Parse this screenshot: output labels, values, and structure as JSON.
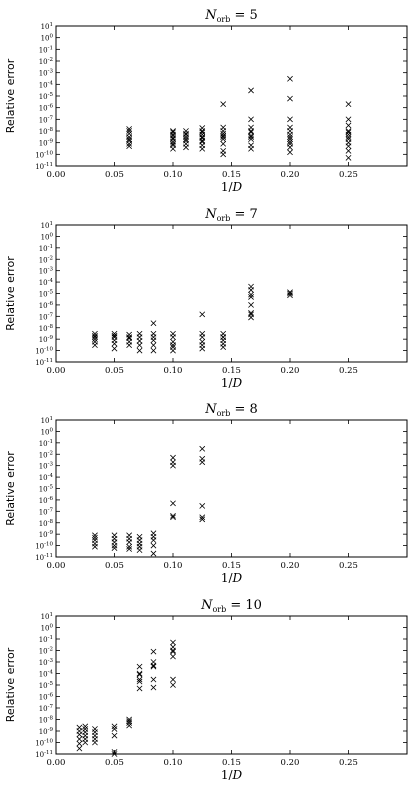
{
  "chart_data": [
    {
      "type": "scatter",
      "title": "N_orb = 5",
      "title_base": "N",
      "title_sub": "orb",
      "title_value": " = 5",
      "xlabel": "1/D",
      "ylabel": "Relative error",
      "xlim": [
        0,
        0.3
      ],
      "ylim": [
        1e-11,
        10
      ],
      "yscale": "log",
      "xticks": [
        0.0,
        0.05,
        0.1,
        0.15,
        0.2,
        0.25
      ],
      "xtick_labels": [
        "0.00",
        "0.05",
        "0.10",
        "0.15",
        "0.20",
        "0.25"
      ],
      "marker": "x",
      "series": [
        {
          "x": [
            0.0625,
            0.0625,
            0.0625,
            0.0625,
            0.0625,
            0.0625,
            0.0625,
            0.0625,
            0.1,
            0.1,
            0.1,
            0.1,
            0.1,
            0.1,
            0.1,
            0.1,
            0.1,
            0.1,
            0.1111,
            0.1111,
            0.1111,
            0.1111,
            0.1111,
            0.1111,
            0.1111,
            0.1111,
            0.125,
            0.125,
            0.125,
            0.125,
            0.125,
            0.125,
            0.125,
            0.125,
            0.125,
            0.125,
            0.1429,
            0.1429,
            0.1429,
            0.1429,
            0.1429,
            0.1429,
            0.1429,
            0.1429,
            0.1429,
            0.1429,
            0.1667,
            0.1667,
            0.1667,
            0.1667,
            0.1667,
            0.1667,
            0.1667,
            0.1667,
            0.1667,
            0.1667,
            0.2,
            0.2,
            0.2,
            0.2,
            0.2,
            0.2,
            0.2,
            0.2,
            0.2,
            0.2,
            0.2,
            0.2,
            0.25,
            0.25,
            0.25,
            0.25,
            0.25,
            0.25,
            0.25,
            0.25,
            0.25,
            0.25,
            0.25,
            0.25
          ],
          "y": [
            1.5e-08,
            6e-09,
            3e-09,
            1.5e-09,
            8e-10,
            5e-10,
            1e-08,
            2e-09,
            1e-08,
            5e-09,
            2.5e-09,
            1.2e-09,
            6e-10,
            3e-10,
            8e-09,
            4e-09,
            2e-09,
            8e-10,
            1e-08,
            6e-09,
            3e-09,
            1.5e-09,
            8e-10,
            4e-10,
            5e-09,
            2e-09,
            1.8e-08,
            1e-08,
            5e-09,
            2.5e-09,
            1.2e-09,
            6e-10,
            3e-10,
            8e-09,
            3e-09,
            1.5e-09,
            2e-06,
            2e-08,
            1e-08,
            4e-09,
            2e-09,
            8e-10,
            2e-10,
            1e-10,
            6e-09,
            3e-09,
            3e-05,
            1e-07,
            2e-08,
            8e-09,
            4e-09,
            2e-09,
            6e-10,
            3e-10,
            1e-08,
            3e-09,
            0.0003,
            6e-06,
            1e-07,
            2e-08,
            1e-08,
            5e-09,
            2e-09,
            8e-10,
            4e-10,
            1.5e-10,
            3e-09,
            1.2e-09,
            2e-06,
            1e-07,
            3e-08,
            1e-08,
            5e-09,
            2e-09,
            1e-09,
            5e-10,
            2e-10,
            5e-11,
            8e-09,
            3e-09
          ]
        }
      ]
    },
    {
      "type": "scatter",
      "title": "N_orb = 7",
      "title_base": "N",
      "title_sub": "orb",
      "title_value": " = 7",
      "xlabel": "1/D",
      "ylabel": "Relative error",
      "xlim": [
        0,
        0.3
      ],
      "ylim": [
        1e-11,
        10
      ],
      "yscale": "log",
      "xticks": [
        0.0,
        0.05,
        0.1,
        0.15,
        0.2,
        0.25
      ],
      "xtick_labels": [
        "0.00",
        "0.05",
        "0.10",
        "0.15",
        "0.20",
        "0.25"
      ],
      "marker": "x",
      "series": [
        {
          "x": [
            0.0333,
            0.0333,
            0.0333,
            0.0333,
            0.0333,
            0.0333,
            0.05,
            0.05,
            0.05,
            0.05,
            0.05,
            0.05,
            0.0625,
            0.0625,
            0.0625,
            0.0625,
            0.0625,
            0.0714,
            0.0714,
            0.0714,
            0.0714,
            0.0714,
            0.0833,
            0.0833,
            0.0833,
            0.0833,
            0.0833,
            0.0833,
            0.1,
            0.1,
            0.1,
            0.1,
            0.1,
            0.1,
            0.125,
            0.125,
            0.125,
            0.125,
            0.125,
            0.125,
            0.1429,
            0.1429,
            0.1429,
            0.1429,
            0.1429,
            0.1429,
            0.1667,
            0.1667,
            0.1667,
            0.1667,
            0.1667,
            0.1667,
            0.1667,
            0.1667,
            0.2,
            0.2,
            0.2
          ],
          "y": [
            3e-09,
            2e-09,
            1e-09,
            6e-10,
            3e-10,
            1.5e-09,
            3e-09,
            1.5e-09,
            8e-10,
            4e-10,
            1.5e-10,
            2e-09,
            2.5e-09,
            1.2e-09,
            6e-10,
            3e-10,
            1.5e-09,
            3e-09,
            1.5e-09,
            7e-10,
            3e-10,
            1e-10,
            2.5e-08,
            3e-09,
            1.5e-09,
            8e-10,
            3e-10,
            1e-10,
            3e-09,
            1.5e-09,
            2e-10,
            1e-10,
            6e-10,
            3e-10,
            1.5e-07,
            3e-09,
            1.5e-09,
            6e-10,
            3e-10,
            1.5e-10,
            3e-09,
            1.5e-09,
            8e-10,
            4e-10,
            2e-10,
            1.5e-09,
            4e-05,
            2e-05,
            8e-06,
            1e-06,
            1.5e-07,
            2e-07,
            8e-08,
            5e-06,
            1e-05,
            1.3e-05,
            7e-06
          ]
        }
      ]
    },
    {
      "type": "scatter",
      "title": "N_orb = 8",
      "title_base": "N",
      "title_sub": "orb",
      "title_value": " = 8",
      "xlabel": "1/D",
      "ylabel": "Relative error",
      "xlim": [
        0,
        0.3
      ],
      "ylim": [
        1e-11,
        10
      ],
      "yscale": "log",
      "xticks": [
        0.0,
        0.05,
        0.1,
        0.15,
        0.2,
        0.25
      ],
      "xtick_labels": [
        "0.00",
        "0.05",
        "0.10",
        "0.15",
        "0.20",
        "0.25"
      ],
      "marker": "x",
      "series": [
        {
          "x": [
            0.0333,
            0.0333,
            0.0333,
            0.0333,
            0.0333,
            0.05,
            0.05,
            0.05,
            0.05,
            0.05,
            0.0625,
            0.0625,
            0.0625,
            0.0625,
            0.0625,
            0.0714,
            0.0714,
            0.0714,
            0.0714,
            0.0714,
            0.0833,
            0.0833,
            0.0833,
            0.0833,
            0.0833,
            0.1,
            0.1,
            0.1,
            0.1,
            0.1,
            0.1,
            0.125,
            0.125,
            0.125,
            0.125,
            0.125,
            0.125
          ],
          "y": [
            8e-10,
            5e-10,
            3e-10,
            1.5e-10,
            8e-11,
            8e-10,
            4e-10,
            2e-10,
            1e-10,
            6e-11,
            8e-10,
            4e-10,
            2e-10,
            8e-11,
            5e-11,
            6e-10,
            3e-10,
            1.5e-10,
            8e-11,
            4e-11,
            1.2e-09,
            6e-10,
            3e-10,
            1e-10,
            2e-11,
            0.005,
            0.002,
            0.001,
            5e-07,
            4e-08,
            3e-08,
            0.03,
            0.004,
            0.002,
            3e-07,
            3e-08,
            2e-08
          ]
        }
      ]
    },
    {
      "type": "scatter",
      "title": "N_orb = 10",
      "title_base": "N",
      "title_sub": "orb",
      "title_value": " = 10",
      "xlabel": "1/D",
      "ylabel": "Relative error",
      "xlim": [
        0,
        0.3
      ],
      "ylim": [
        1e-11,
        10
      ],
      "yscale": "log",
      "xticks": [
        0.0,
        0.05,
        0.1,
        0.15,
        0.2,
        0.25
      ],
      "xtick_labels": [
        "0.00",
        "0.05",
        "0.10",
        "0.15",
        "0.20",
        "0.25"
      ],
      "marker": "x",
      "series": [
        {
          "x": [
            0.02,
            0.02,
            0.02,
            0.02,
            0.02,
            0.02,
            0.025,
            0.025,
            0.025,
            0.025,
            0.025,
            0.025,
            0.0333,
            0.0333,
            0.0333,
            0.0333,
            0.0333,
            0.05,
            0.05,
            0.05,
            0.05,
            0.05,
            0.0625,
            0.0625,
            0.0625,
            0.0625,
            0.0714,
            0.0714,
            0.0714,
            0.0714,
            0.0714,
            0.0714,
            0.0833,
            0.0833,
            0.0833,
            0.0833,
            0.0833,
            0.0833,
            0.1,
            0.1,
            0.1,
            0.1,
            0.1,
            0.1,
            0.1
          ],
          "y": [
            2e-09,
            1e-09,
            5e-10,
            2e-10,
            8e-11,
            3e-11,
            2.5e-09,
            1.5e-09,
            8e-10,
            4e-10,
            2e-10,
            1e-10,
            1.5e-09,
            8e-10,
            4e-10,
            2e-10,
            1e-10,
            2.5e-09,
            1.5e-09,
            4e-10,
            1.5e-11,
            1e-11,
            1e-08,
            7e-09,
            5e-09,
            3e-09,
            0.0004,
            0.0001,
            3e-05,
            5e-06,
            2e-05,
            8e-05,
            0.008,
            0.001,
            0.0004,
            3e-05,
            6e-06,
            0.0005,
            0.05,
            0.02,
            0.008,
            0.003,
            3e-05,
            1e-05,
            0.01
          ]
        }
      ]
    }
  ]
}
